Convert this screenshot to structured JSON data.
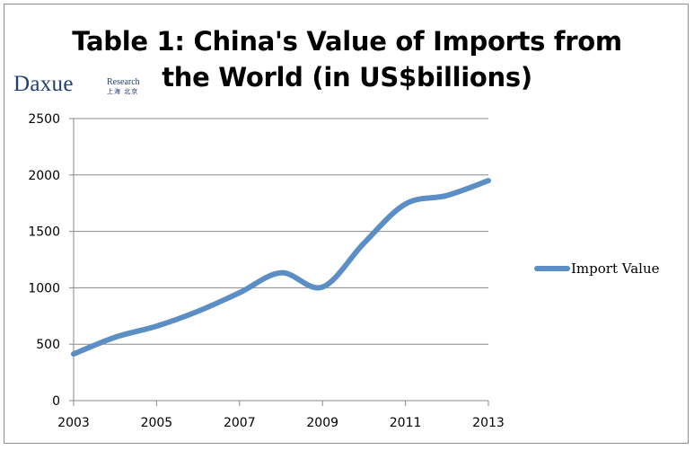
{
  "chart_data": {
    "type": "line",
    "title_lines": [
      "Table 1: China's Value of Imports from",
      "the World (in US$billions)"
    ],
    "x": [
      2003,
      2004,
      2005,
      2006,
      2007,
      2008,
      2009,
      2010,
      2011,
      2012,
      2013
    ],
    "series": [
      {
        "name": "Import Value",
        "values": [
          413,
          561,
          660,
          792,
          956,
          1133,
          1006,
          1396,
          1743,
          1818,
          1950
        ]
      }
    ],
    "x_tick_labels": [
      "2003",
      "2005",
      "2007",
      "2009",
      "2011",
      "2013"
    ],
    "y_tick_labels": [
      "0",
      "500",
      "1000",
      "1500",
      "2000",
      "2500"
    ],
    "xlim": [
      2003,
      2013
    ],
    "ylim": [
      0,
      2500
    ],
    "grid": "horizontal",
    "legend_position": "right",
    "line_color": "#5b8ec4",
    "grid_color": "#898989"
  },
  "logo": {
    "name": "Daxue",
    "sub": "Research",
    "cn": "上海 北京"
  }
}
